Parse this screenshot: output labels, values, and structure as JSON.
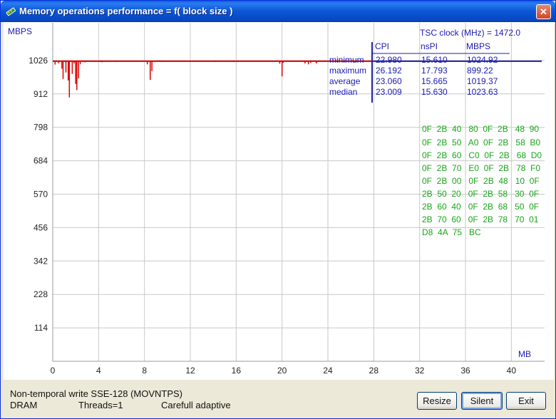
{
  "window": {
    "title": "Memory operations performance = f( block size )",
    "close_glyph": "✕"
  },
  "chart_data": {
    "type": "bar",
    "ylabel": "MBPS",
    "xlabel": "MB",
    "y_ticks": [
      "1026",
      "912",
      "798",
      "684",
      "570",
      "456",
      "342",
      "228",
      "114"
    ],
    "y_tick_values": [
      1026,
      912,
      798,
      684,
      570,
      456,
      342,
      228,
      114
    ],
    "x_ticks": [
      "0",
      "4",
      "8",
      "12",
      "16",
      "20",
      "24",
      "28",
      "32",
      "36",
      "40"
    ],
    "x_tick_values": [
      0,
      4,
      8,
      12,
      16,
      20,
      24,
      28,
      32,
      36,
      40
    ],
    "ylim": [
      0,
      1140
    ],
    "xlim": [
      0,
      42.9
    ],
    "grid": true,
    "series_color": "#dd0000",
    "dips": [
      {
        "x": 0.2,
        "y": 1012
      },
      {
        "x": 0.5,
        "y": 1017
      },
      {
        "x": 0.8,
        "y": 998
      },
      {
        "x": 0.9,
        "y": 963
      },
      {
        "x": 1.15,
        "y": 985
      },
      {
        "x": 1.35,
        "y": 958
      },
      {
        "x": 1.45,
        "y": 900
      },
      {
        "x": 1.7,
        "y": 980
      },
      {
        "x": 1.85,
        "y": 1016
      },
      {
        "x": 2.0,
        "y": 946
      },
      {
        "x": 2.1,
        "y": 925
      },
      {
        "x": 2.25,
        "y": 965
      },
      {
        "x": 2.4,
        "y": 1013
      },
      {
        "x": 2.8,
        "y": 1020
      },
      {
        "x": 4.1,
        "y": 1021
      },
      {
        "x": 4.3,
        "y": 1020
      },
      {
        "x": 5.5,
        "y": 1021
      },
      {
        "x": 6.8,
        "y": 1021
      },
      {
        "x": 8.25,
        "y": 1013
      },
      {
        "x": 8.5,
        "y": 960
      },
      {
        "x": 8.65,
        "y": 990
      },
      {
        "x": 9.5,
        "y": 1021
      },
      {
        "x": 11.2,
        "y": 1021
      },
      {
        "x": 14.2,
        "y": 1021
      },
      {
        "x": 15.8,
        "y": 1021
      },
      {
        "x": 18.2,
        "y": 1021
      },
      {
        "x": 19.4,
        "y": 1021
      },
      {
        "x": 19.8,
        "y": 1015
      },
      {
        "x": 20.0,
        "y": 972
      },
      {
        "x": 20.1,
        "y": 1018
      },
      {
        "x": 22.0,
        "y": 1016
      },
      {
        "x": 22.3,
        "y": 1013
      },
      {
        "x": 22.5,
        "y": 1018
      },
      {
        "x": 23.0,
        "y": 1016
      },
      {
        "x": 24.6,
        "y": 1021
      },
      {
        "x": 25.4,
        "y": 1021
      },
      {
        "x": 27.0,
        "y": 1021
      },
      {
        "x": 29.5,
        "y": 1023
      },
      {
        "x": 33.5,
        "y": 1023
      }
    ],
    "baseline_mbps": 1023.63
  },
  "clock": {
    "label": "TSC clock (MHz)  =  1472.0"
  },
  "stats": {
    "headers": {
      "cpi": "CPI",
      "nspi": "nsPI",
      "mbps": "MBPS"
    },
    "rows": [
      {
        "label": "minimum",
        "cpi": "22.980",
        "nspi": "15.610",
        "mbps": "1024.92"
      },
      {
        "label": "maximum",
        "cpi": "26.192",
        "nspi": "17.793",
        "mbps": "899.22"
      },
      {
        "label": "average",
        "cpi": "23.060",
        "nspi": "15.665",
        "mbps": "1019.37"
      },
      {
        "label": "median",
        "cpi": "23.009",
        "nspi": "15.630",
        "mbps": "1023.63"
      }
    ]
  },
  "hex_dump": [
    "0F  2B  40   80  0F  2B   48  90",
    "0F  2B  50   A0  0F  2B   58  B0",
    "0F  2B  60   C0  0F  2B   68  D0",
    "0F  2B  70   E0  0F  2B   78  F0",
    "0F  2B  00   0F  2B  48   10  0F",
    "2B  50  20   0F  2B  58   30  0F",
    "2B  60  40   0F  2B  68   50  0F",
    "2B  70  60   0F  2B  78   70  01",
    "D8  4A  75   BC"
  ],
  "status": {
    "line1": "Non-temporal write SSE-128 (MOVNTPS)",
    "memory": "DRAM",
    "threads": "Threads=1",
    "mode": "Carefull adaptive"
  },
  "buttons": {
    "resize": "Resize",
    "silent": "Silent",
    "exit": "Exit"
  },
  "colors": {
    "title_bar": "#0a56d6",
    "grid": "#c8c8c8",
    "axis_text": "#222222",
    "stats_text": "#1a1ab4",
    "hex_text": "#1aa51a",
    "series": "#dd0000"
  }
}
